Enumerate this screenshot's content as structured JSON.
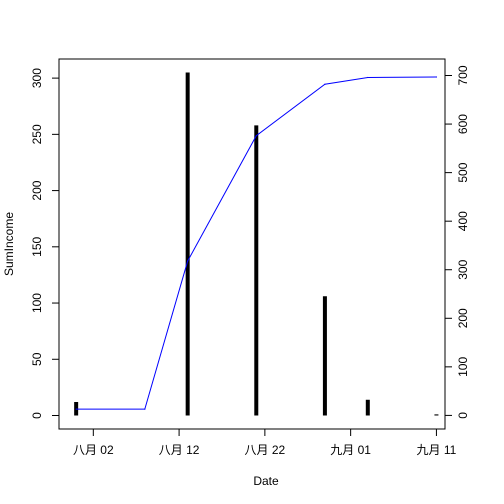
{
  "chart_data": {
    "type": "bar",
    "xlabel": "Date",
    "ylabel": "SumIncome",
    "x_ticks": [
      {
        "date": "2015-08-02",
        "label": "八月 02"
      },
      {
        "date": "2015-08-12",
        "label": "八月 12"
      },
      {
        "date": "2015-08-22",
        "label": "八月 22"
      },
      {
        "date": "2015-09-01",
        "label": "九月 01"
      },
      {
        "date": "2015-09-11",
        "label": "九月 11"
      }
    ],
    "xlim": [
      "2015-07-29",
      "2015-09-12"
    ],
    "y_left": {
      "ticks": [
        0,
        50,
        100,
        150,
        200,
        250,
        300
      ],
      "ylim": [
        -12,
        317
      ]
    },
    "y_right": {
      "ticks": [
        0,
        100,
        200,
        300,
        400,
        500,
        600,
        700
      ],
      "ylim": [
        -28,
        734
      ]
    },
    "bars": {
      "axis": "left",
      "color": "#000000",
      "points": [
        {
          "x": "2015-07-31",
          "y": 12
        },
        {
          "x": "2015-08-13",
          "y": 305
        },
        {
          "x": "2015-08-21",
          "y": 258
        },
        {
          "x": "2015-08-29",
          "y": 106
        },
        {
          "x": "2015-09-03",
          "y": 14
        },
        {
          "x": "2015-09-11",
          "y": 1
        }
      ]
    },
    "line": {
      "axis": "right",
      "color": "#0000ff",
      "points": [
        {
          "x": "2015-07-31",
          "y": 13
        },
        {
          "x": "2015-08-08",
          "y": 13
        },
        {
          "x": "2015-08-13",
          "y": 318
        },
        {
          "x": "2015-08-21",
          "y": 576
        },
        {
          "x": "2015-08-29",
          "y": 682
        },
        {
          "x": "2015-09-03",
          "y": 696
        },
        {
          "x": "2015-09-11",
          "y": 697
        }
      ]
    }
  }
}
